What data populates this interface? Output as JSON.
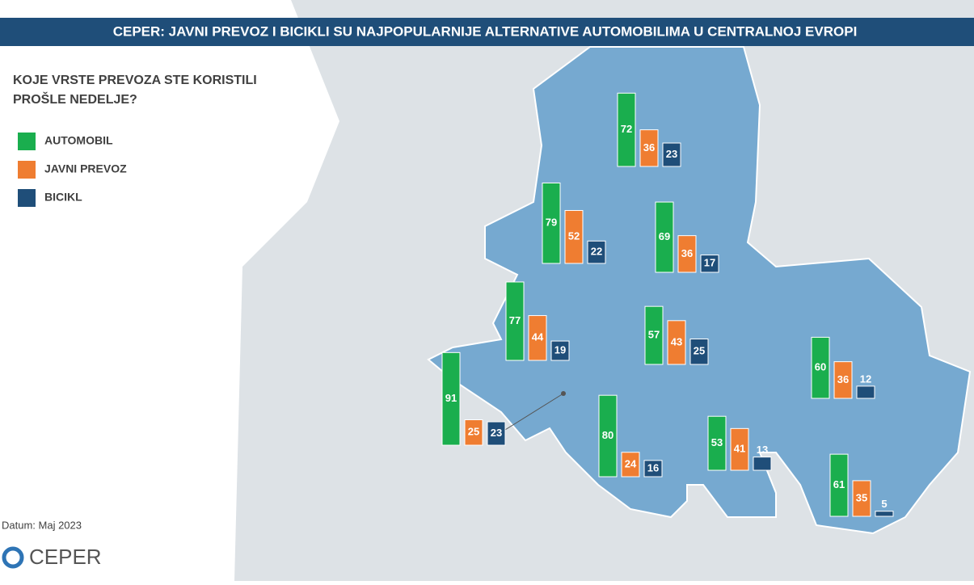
{
  "chart_data": {
    "type": "bar",
    "title": "CEPER: JAVNI PREVOZ I BICIKLI SU NAJPOPULARNIJE ALTERNATIVE AUTOMOBILIMA U CENTRALNOJ EVROPI",
    "subtitle": [
      "KOJE VRSTE PREVOZA STE KORISTILI",
      "PROŠLE NEDELJE?"
    ],
    "categories": [
      null,
      null,
      null,
      null,
      null,
      null,
      null,
      null,
      null,
      null
    ],
    "series": [
      {
        "name": "AUTOMOBIL",
        "color": "#1aae4e",
        "values": [
          72,
          79,
          69,
          77,
          57,
          60,
          91,
          80,
          53,
          61
        ]
      },
      {
        "name": "JAVNI PREVOZ",
        "color": "#ef7d31",
        "values": [
          36,
          52,
          36,
          44,
          43,
          36,
          25,
          24,
          41,
          35
        ]
      },
      {
        "name": "BICIKL",
        "color": "#1f4e79",
        "values": [
          23,
          22,
          17,
          19,
          25,
          12,
          23,
          16,
          13,
          5
        ]
      }
    ],
    "footnote": "Datum: Maj 2023",
    "logo": "CEPER"
  }
}
